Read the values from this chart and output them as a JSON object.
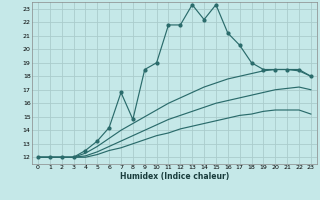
{
  "xlabel": "Humidex (Indice chaleur)",
  "xlim": [
    -0.5,
    23.5
  ],
  "ylim": [
    11.5,
    23.5
  ],
  "xticks": [
    0,
    1,
    2,
    3,
    4,
    5,
    6,
    7,
    8,
    9,
    10,
    11,
    12,
    13,
    14,
    15,
    16,
    17,
    18,
    19,
    20,
    21,
    22,
    23
  ],
  "yticks": [
    12,
    13,
    14,
    15,
    16,
    17,
    18,
    19,
    20,
    21,
    22,
    23
  ],
  "bg_color": "#c5e8e8",
  "line_color": "#2a6b6b",
  "grid_color": "#aacccc",
  "line1_x": [
    0,
    1,
    2,
    3,
    4,
    5,
    6,
    7,
    8,
    9,
    10,
    11,
    12,
    13,
    14,
    15,
    16,
    17,
    18,
    19,
    20,
    21,
    22,
    23
  ],
  "line1_y": [
    12,
    12,
    12,
    12,
    12.5,
    13.2,
    14.2,
    16.8,
    14.8,
    18.5,
    19.0,
    21.8,
    21.8,
    23.3,
    22.2,
    23.3,
    21.2,
    20.3,
    19.0,
    18.5,
    18.5,
    18.5,
    18.5,
    18.0
  ],
  "line2_x": [
    0,
    2,
    3,
    4,
    5,
    6,
    7,
    8,
    9,
    10,
    11,
    12,
    13,
    14,
    15,
    16,
    17,
    18,
    19,
    20,
    21,
    22,
    23
  ],
  "line2_y": [
    12,
    12,
    12,
    12.3,
    12.8,
    13.4,
    14.0,
    14.5,
    15.0,
    15.5,
    16.0,
    16.4,
    16.8,
    17.2,
    17.5,
    17.8,
    18.0,
    18.2,
    18.4,
    18.5,
    18.5,
    18.4,
    18.0
  ],
  "line3_x": [
    0,
    2,
    3,
    4,
    5,
    6,
    7,
    8,
    9,
    10,
    11,
    12,
    13,
    14,
    15,
    16,
    17,
    18,
    19,
    20,
    21,
    22,
    23
  ],
  "line3_y": [
    12,
    12,
    12,
    12.1,
    12.4,
    12.8,
    13.2,
    13.6,
    14.0,
    14.4,
    14.8,
    15.1,
    15.4,
    15.7,
    16.0,
    16.2,
    16.4,
    16.6,
    16.8,
    17.0,
    17.1,
    17.2,
    17.0
  ],
  "line4_x": [
    0,
    2,
    3,
    4,
    5,
    6,
    7,
    8,
    9,
    10,
    11,
    12,
    13,
    14,
    15,
    16,
    17,
    18,
    19,
    20,
    21,
    22,
    23
  ],
  "line4_y": [
    12,
    12,
    12,
    12.0,
    12.2,
    12.5,
    12.7,
    13.0,
    13.3,
    13.6,
    13.8,
    14.1,
    14.3,
    14.5,
    14.7,
    14.9,
    15.1,
    15.2,
    15.4,
    15.5,
    15.5,
    15.5,
    15.2
  ]
}
